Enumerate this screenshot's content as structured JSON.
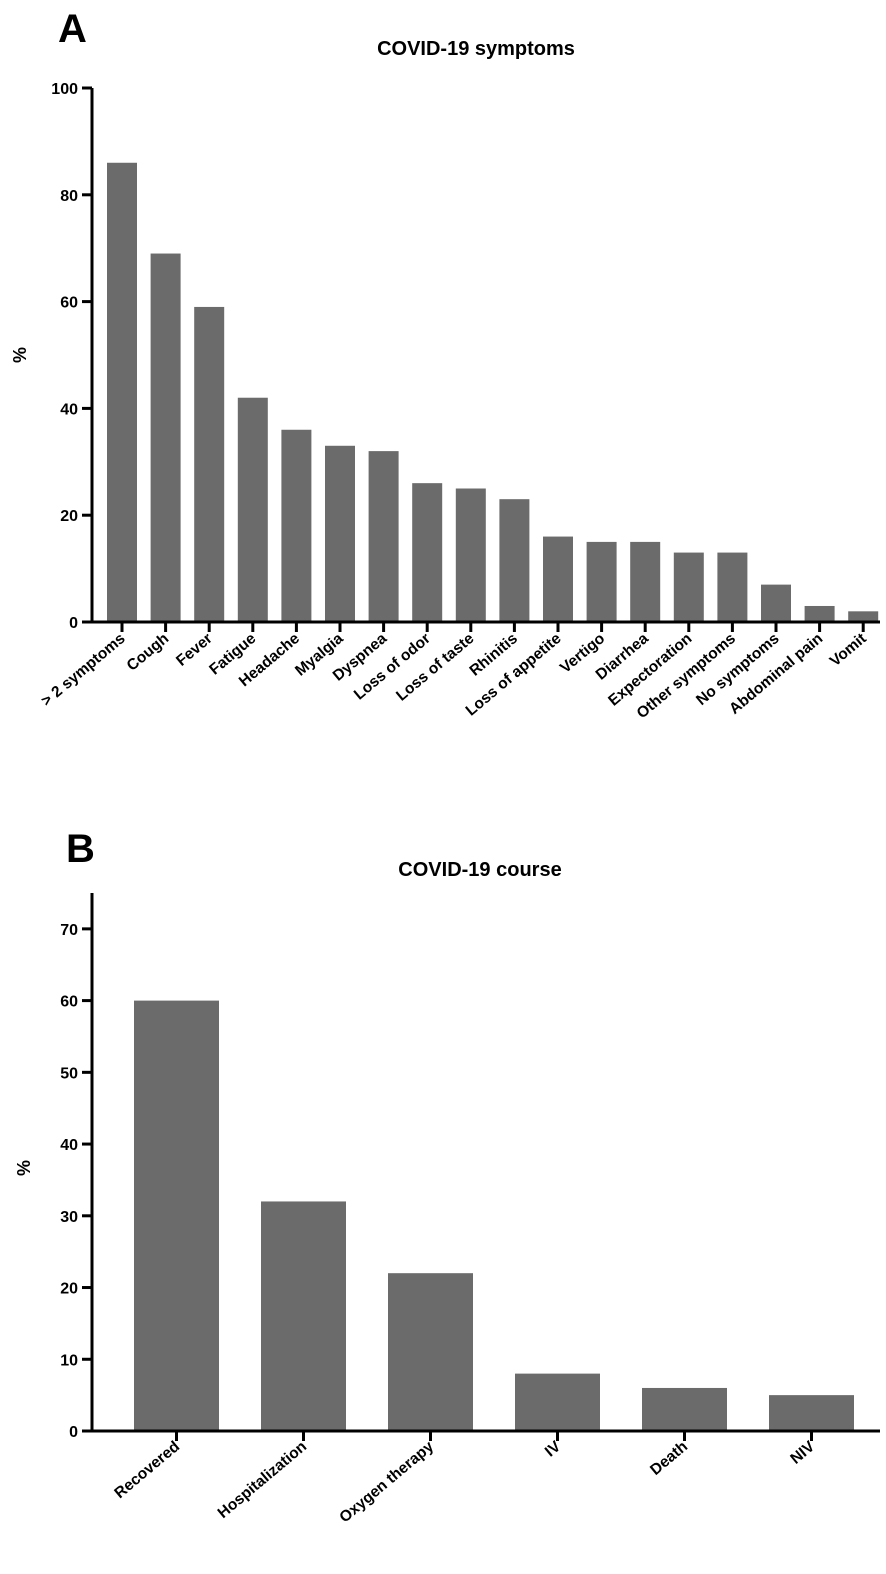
{
  "chart_data": [
    {
      "panel": "A",
      "type": "bar",
      "title": "COVID-19 symptoms",
      "xlabel": "",
      "ylabel": "%",
      "ylim": [
        0,
        100
      ],
      "yticks": [
        0,
        20,
        40,
        60,
        80,
        100
      ],
      "bar_color": "#6b6b6b",
      "grid": false,
      "categories": [
        "> 2 symptoms",
        "Cough",
        "Fever",
        "Fatigue",
        "Headache",
        "Myalgia",
        "Dyspnea",
        "Loss of odor",
        "Loss of taste",
        "Rhinitis",
        "Loss of appetite",
        "Vertigo",
        "Diarrhea",
        "Expectoration",
        "Other symptoms",
        "No symptoms",
        "Abdominal pain",
        "Vomit"
      ],
      "values": [
        86,
        69,
        59,
        42,
        36,
        33,
        32,
        26,
        25,
        23,
        16,
        15,
        15,
        13,
        13,
        7,
        3,
        2
      ]
    },
    {
      "panel": "B",
      "type": "bar",
      "title": "COVID-19 course",
      "xlabel": "",
      "ylabel": "%",
      "ylim": [
        0,
        75
      ],
      "yticks": [
        0,
        10,
        20,
        30,
        40,
        50,
        60,
        70
      ],
      "bar_color": "#6b6b6b",
      "grid": false,
      "categories": [
        "Recovered",
        "Hospitalization",
        "Oxygen therapy",
        "IV",
        "Death",
        "NIV"
      ],
      "values": [
        60,
        32,
        22,
        8,
        6,
        5
      ]
    }
  ]
}
